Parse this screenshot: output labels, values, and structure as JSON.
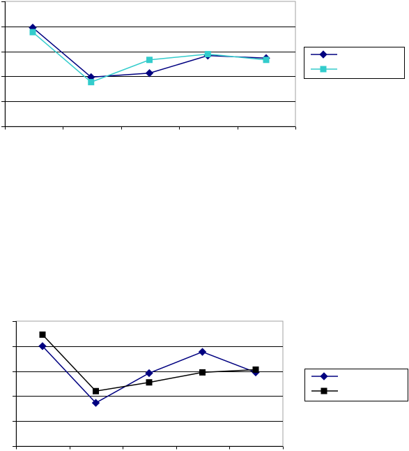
{
  "chart_data": [
    {
      "type": "line",
      "x": [
        1,
        2,
        3,
        4,
        5
      ],
      "ylim": [
        0,
        5
      ],
      "grid": true,
      "legend": "right",
      "series": [
        {
          "values": [
            3.95,
            1.97,
            2.13,
            2.83,
            2.73
          ],
          "color": "#000080",
          "marker": "diamond"
        },
        {
          "values": [
            3.77,
            1.77,
            2.66,
            2.89,
            2.66
          ],
          "color": "#33CCCC",
          "marker": "square"
        }
      ]
    },
    {
      "type": "line",
      "x": [
        1,
        2,
        3,
        4,
        5
      ],
      "ylim": [
        0,
        5
      ],
      "grid": true,
      "legend": "right",
      "series": [
        {
          "values": [
            4.0,
            1.73,
            2.92,
            3.77,
            2.95
          ],
          "color": "#000080",
          "marker": "diamond"
        },
        {
          "values": [
            4.46,
            2.2,
            2.55,
            2.95,
            3.06
          ],
          "color": "#000000",
          "marker": "square"
        }
      ]
    }
  ]
}
